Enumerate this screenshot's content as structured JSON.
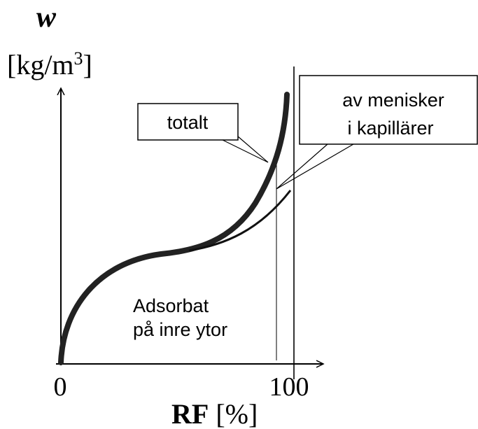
{
  "y_axis": {
    "symbol": "w",
    "unit": "[kg/m",
    "unit_sup": "3",
    "unit_end": "]"
  },
  "x_axis": {
    "symbol": "RF",
    "unit": "[%]",
    "ticks": [
      "0",
      "100"
    ]
  },
  "callouts": [
    {
      "lines": [
        "totalt"
      ]
    },
    {
      "lines": [
        "av menisker",
        "i kapillärer"
      ]
    }
  ],
  "region_label": {
    "lines": [
      "Adsorbat",
      "på inre ytor"
    ]
  }
}
